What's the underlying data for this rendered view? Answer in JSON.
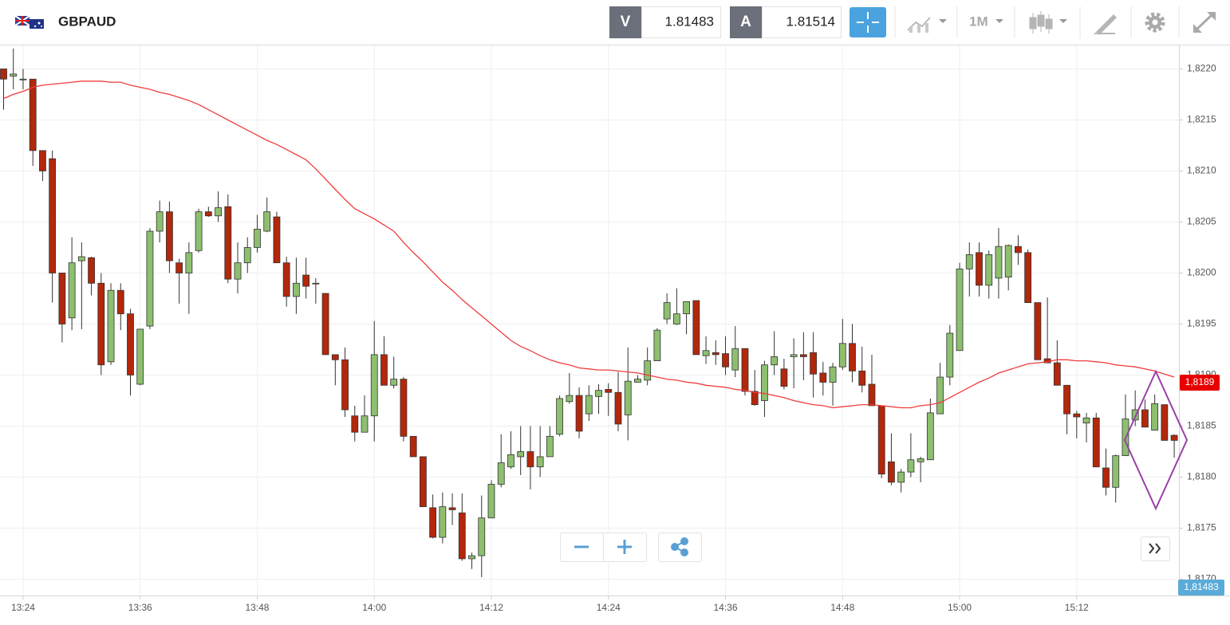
{
  "header": {
    "symbol": "GBPAUD",
    "sell_label": "V",
    "sell_price": 1.81483,
    "buy_label": "A",
    "buy_price": 1.81514,
    "timeframe": "1M"
  },
  "chart_data": {
    "type": "candlestick",
    "categories": [
      null,
      null,
      "13:24",
      null,
      null,
      null,
      null,
      null,
      null,
      null,
      null,
      null,
      null,
      null,
      "13:36",
      null,
      null,
      null,
      null,
      null,
      null,
      null,
      null,
      null,
      null,
      null,
      "13:48",
      null,
      null,
      null,
      null,
      null,
      null,
      null,
      null,
      null,
      null,
      null,
      "14:00",
      null,
      null,
      null,
      null,
      null,
      null,
      null,
      null,
      null,
      null,
      null,
      "14:12",
      null,
      null,
      null,
      null,
      null,
      null,
      null,
      null,
      null,
      null,
      null,
      "14:24",
      null,
      null,
      null,
      null,
      null,
      null,
      null,
      null,
      null,
      null,
      null,
      "14:36",
      null,
      null,
      null,
      null,
      null,
      null,
      null,
      null,
      null,
      null,
      null,
      "14:48",
      null,
      null,
      null,
      null,
      null,
      null,
      null,
      null,
      null,
      null,
      null,
      "15:00",
      null,
      null,
      null,
      null,
      null,
      null,
      null,
      null,
      null,
      null,
      null,
      "15:12",
      null,
      null,
      null,
      null,
      null,
      null,
      null,
      null,
      null,
      null
    ],
    "open": [
      1.822,
      1.82193,
      1.8219,
      1.8219,
      1.8212,
      1.82112,
      1.82,
      1.81956,
      1.82012,
      1.82015,
      1.8199,
      1.81913,
      1.81983,
      1.8196,
      1.81891,
      1.81948,
      1.82041,
      1.8206,
      1.8201,
      1.82,
      1.82022,
      1.8206,
      1.82056,
      1.82065,
      1.81994,
      1.8201,
      1.82025,
      1.82041,
      1.82055,
      1.8201,
      1.81977,
      1.81998,
      1.8199,
      1.8198,
      1.8192,
      1.81915,
      1.8186,
      1.81844,
      1.8186,
      1.8192,
      1.8189,
      1.81896,
      1.8184,
      1.8182,
      1.8177,
      1.81741,
      1.8177,
      1.81765,
      1.8172,
      1.81723,
      1.8176,
      1.81793,
      1.8181,
      1.8182,
      1.81825,
      1.8181,
      1.8182,
      1.81842,
      1.81874,
      1.8188,
      1.81862,
      1.81879,
      1.81886,
      1.81883,
      1.81861,
      1.81893,
      1.81895,
      1.81914,
      1.81955,
      1.8195,
      1.8196,
      1.81973,
      1.81919,
      1.81922,
      1.81921,
      1.81905,
      1.81926,
      1.81884,
      1.81875,
      1.8191,
      1.81906,
      1.81918,
      1.8192,
      1.81922,
      1.81902,
      1.81893,
      1.81908,
      1.81931,
      1.81904,
      1.81891,
      1.8187,
      1.81815,
      1.81795,
      1.81805,
      1.81815,
      1.81817,
      1.81862,
      1.81898,
      1.81924,
      1.82004,
      1.8202,
      1.81988,
      1.81995,
      1.81996,
      1.82026,
      1.8202,
      1.81971,
      1.81916,
      1.81912,
      1.8189,
      1.81862,
      1.81853,
      1.81858,
      1.81809,
      1.8179,
      1.81821,
      1.81856,
      1.81866,
      1.81846,
      1.81871,
      1.81841
    ],
    "high": [
      1.822,
      1.8222,
      1.822,
      1.8219,
      1.8212,
      1.8212,
      1.82,
      1.82035,
      1.8203,
      1.82016,
      1.82,
      1.8199,
      1.8199,
      1.81965,
      1.81945,
      1.82044,
      1.82071,
      1.8207,
      1.82014,
      1.8203,
      1.82063,
      1.82065,
      1.8208,
      1.82077,
      1.8203,
      1.82035,
      1.82057,
      1.82074,
      1.8206,
      1.82016,
      1.82015,
      1.82015,
      1.81995,
      1.8198,
      1.8192,
      1.81927,
      1.8187,
      1.8188,
      1.81953,
      1.81938,
      1.81918,
      1.81898,
      1.8184,
      1.8182,
      1.81783,
      1.81785,
      1.81784,
      1.81784,
      1.81726,
      1.81782,
      1.81797,
      1.81842,
      1.81845,
      1.8185,
      1.8185,
      1.8185,
      1.8185,
      1.8188,
      1.81902,
      1.81888,
      1.8189,
      1.81891,
      1.81892,
      1.81903,
      1.81927,
      1.819,
      1.81927,
      1.81946,
      1.8198,
      1.81985,
      1.81972,
      1.81973,
      1.81938,
      1.81934,
      1.81938,
      1.81948,
      1.81926,
      1.81905,
      1.81914,
      1.81943,
      1.81916,
      1.81936,
      1.81942,
      1.81942,
      1.81913,
      1.81912,
      1.81955,
      1.8195,
      1.81928,
      1.8192,
      1.8187,
      1.81843,
      1.81808,
      1.81843,
      1.8182,
      1.81877,
      1.81912,
      1.81949,
      1.8201,
      1.8203,
      1.8203,
      1.82022,
      1.82044,
      1.82028,
      1.82037,
      1.82023,
      1.81971,
      1.81976,
      1.81934,
      1.8189,
      1.81865,
      1.81863,
      1.81863,
      1.81828,
      1.81822,
      1.81881,
      1.81885,
      1.81876,
      1.81881,
      1.81871,
      1.81842
    ],
    "low": [
      1.8216,
      1.8218,
      1.8218,
      1.82105,
      1.8209,
      1.81971,
      1.81932,
      1.81944,
      1.81945,
      1.81978,
      1.819,
      1.8191,
      1.81944,
      1.8188,
      1.8189,
      1.81945,
      1.8203,
      1.82,
      1.8197,
      1.8196,
      1.8202,
      1.82055,
      1.8205,
      1.8199,
      1.8198,
      1.82,
      1.8202,
      1.8204,
      1.8201,
      1.81967,
      1.8196,
      1.81975,
      1.8197,
      1.8192,
      1.8189,
      1.81859,
      1.81835,
      1.81844,
      1.81835,
      1.8189,
      1.81887,
      1.81835,
      1.8182,
      1.81771,
      1.8174,
      1.81735,
      1.81753,
      1.81718,
      1.8171,
      1.81702,
      1.8176,
      1.8179,
      1.81808,
      1.81802,
      1.81788,
      1.818,
      1.8182,
      1.8184,
      1.81872,
      1.81838,
      1.81855,
      1.81862,
      1.8186,
      1.81845,
      1.81836,
      1.81893,
      1.8189,
      1.81914,
      1.8195,
      1.81949,
      1.8194,
      1.8192,
      1.81911,
      1.8191,
      1.819,
      1.81898,
      1.8188,
      1.8187,
      1.81859,
      1.819,
      1.81886,
      1.81887,
      1.81895,
      1.81878,
      1.8188,
      1.8187,
      1.81905,
      1.81893,
      1.81883,
      1.8187,
      1.81799,
      1.81792,
      1.81785,
      1.818,
      1.81795,
      1.81817,
      1.81862,
      1.8189,
      1.81924,
      1.81977,
      1.81977,
      1.81975,
      1.81975,
      1.81983,
      1.82008,
      1.81971,
      1.81915,
      1.81912,
      1.8189,
      1.81842,
      1.81838,
      1.81834,
      1.8181,
      1.81782,
      1.81775,
      1.81821,
      1.8185,
      1.81849,
      1.81846,
      1.81836,
      1.81819
    ],
    "close": [
      1.8219,
      1.82195,
      1.8219,
      1.8212,
      1.821,
      1.82,
      1.8195,
      1.8201,
      1.82016,
      1.8199,
      1.8191,
      1.81983,
      1.8196,
      1.819,
      1.81945,
      1.82041,
      1.8206,
      1.82012,
      1.82,
      1.8202,
      1.8206,
      1.82056,
      1.82064,
      1.81994,
      1.8201,
      1.82025,
      1.82043,
      1.8206,
      1.8201,
      1.81977,
      1.8199,
      1.81987,
      1.8199,
      1.8192,
      1.81915,
      1.81866,
      1.81844,
      1.8186,
      1.8192,
      1.8189,
      1.81896,
      1.8184,
      1.8182,
      1.81771,
      1.81741,
      1.81771,
      1.81768,
      1.8172,
      1.81723,
      1.8176,
      1.81793,
      1.81814,
      1.81822,
      1.81825,
      1.8181,
      1.8182,
      1.8184,
      1.81877,
      1.8188,
      1.81845,
      1.8188,
      1.81885,
      1.81883,
      1.81852,
      1.81894,
      1.81896,
      1.81914,
      1.81944,
      1.81971,
      1.8196,
      1.81972,
      1.8192,
      1.81924,
      1.8192,
      1.81908,
      1.81926,
      1.81884,
      1.81871,
      1.8191,
      1.81918,
      1.81889,
      1.8192,
      1.81918,
      1.81901,
      1.81893,
      1.81908,
      1.81931,
      1.81904,
      1.8189,
      1.8187,
      1.81803,
      1.81795,
      1.81805,
      1.81817,
      1.81818,
      1.81863,
      1.81898,
      1.81941,
      1.82004,
      1.82018,
      1.81988,
      1.82018,
      1.82026,
      1.82027,
      1.8202,
      1.81971,
      1.81915,
      1.81912,
      1.8189,
      1.81862,
      1.81859,
      1.81858,
      1.8181,
      1.8179,
      1.81821,
      1.81857,
      1.81866,
      1.81849,
      1.81872,
      1.81836,
      1.81836
    ],
    "ma": [
      1.82171,
      1.82175,
      1.82178,
      1.82182,
      1.82184,
      1.82185,
      1.82186,
      1.82187,
      1.82188,
      1.82188,
      1.82188,
      1.82187,
      1.82187,
      1.82184,
      1.82182,
      1.8218,
      1.82177,
      1.82175,
      1.82172,
      1.82169,
      1.82165,
      1.8216,
      1.82155,
      1.8215,
      1.82145,
      1.8214,
      1.82135,
      1.8213,
      1.82126,
      1.82121,
      1.82116,
      1.82111,
      1.82102,
      1.82092,
      1.82082,
      1.82072,
      1.82063,
      1.82058,
      1.82053,
      1.82047,
      1.82041,
      1.8203,
      1.8202,
      1.82011,
      1.82001,
      1.81991,
      1.81983,
      1.81974,
      1.81966,
      1.81958,
      1.8195,
      1.81942,
      1.81934,
      1.81928,
      1.81924,
      1.81919,
      1.81915,
      1.81912,
      1.8191,
      1.81907,
      1.81906,
      1.81905,
      1.81905,
      1.81904,
      1.81903,
      1.81902,
      1.819,
      1.81898,
      1.81896,
      1.81895,
      1.81893,
      1.81892,
      1.8189,
      1.81889,
      1.81888,
      1.81886,
      1.81885,
      1.81883,
      1.81882,
      1.8188,
      1.81878,
      1.81875,
      1.81873,
      1.81871,
      1.8187,
      1.81868,
      1.81869,
      1.8187,
      1.81871,
      1.81871,
      1.8187,
      1.81869,
      1.81868,
      1.81868,
      1.8187,
      1.81871,
      1.81873,
      1.81878,
      1.81883,
      1.81888,
      1.81893,
      1.81897,
      1.81902,
      1.81905,
      1.81908,
      1.81911,
      1.81912,
      1.81913,
      1.81915,
      1.81915,
      1.81914,
      1.81914,
      1.81913,
      1.81912,
      1.8191,
      1.81909,
      1.81908,
      1.81906,
      1.81904,
      1.81901,
      1.81898
    ],
    "up_color": "#8dbf6f",
    "down_color": "#b3270b",
    "ma_color": "#f03c3c",
    "ylim": [
      1.81684,
      1.82223
    ],
    "yticks": [
      {
        "value": 1.817,
        "label": "1,8170"
      },
      {
        "value": 1.8175,
        "label": "1,8175"
      },
      {
        "value": 1.818,
        "label": "1,8180"
      },
      {
        "value": 1.8185,
        "label": "1,8185"
      },
      {
        "value": 1.819,
        "label": "1,8190"
      },
      {
        "value": 1.8195,
        "label": "1,8195"
      },
      {
        "value": 1.82,
        "label": "1,8200"
      },
      {
        "value": 1.8205,
        "label": "1,8205"
      },
      {
        "value": 1.821,
        "label": "1,8210"
      },
      {
        "value": 1.8215,
        "label": "1,8215"
      },
      {
        "value": 1.822,
        "label": "1,8220"
      }
    ],
    "grid": true,
    "price_tags": [
      "1,8189",
      "1,81483"
    ]
  }
}
